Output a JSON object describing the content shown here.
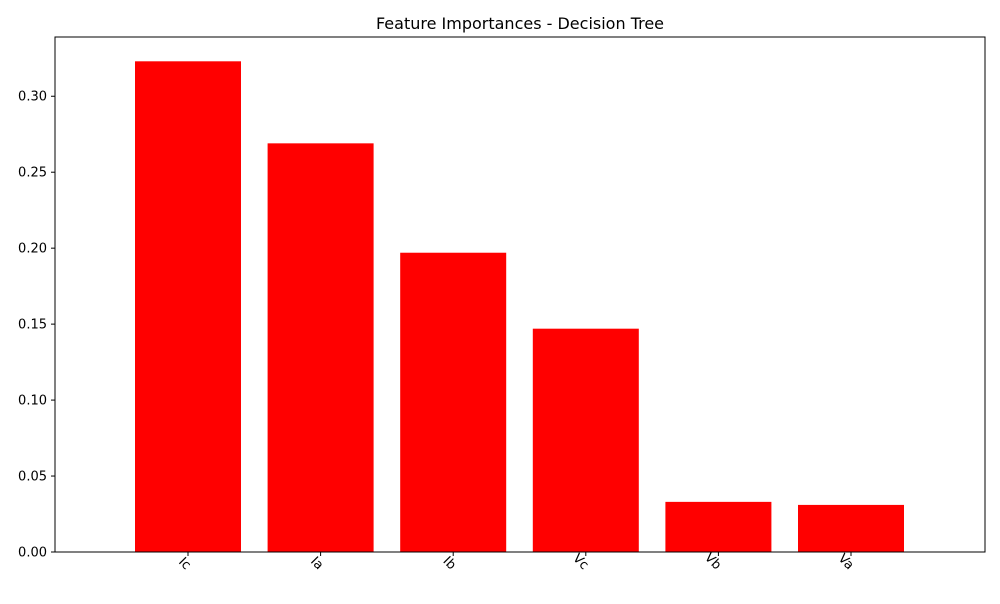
{
  "chart_data": {
    "type": "bar",
    "title": "Feature Importances - Decision Tree",
    "xlabel": "",
    "ylabel": "",
    "categories": [
      "Ic",
      "Ia",
      "Ib",
      "Vc",
      "Vb",
      "Va"
    ],
    "values": [
      0.323,
      0.269,
      0.197,
      0.147,
      0.033,
      0.031
    ],
    "ylim": [
      0,
      0.339
    ],
    "yticks": [
      0.0,
      0.05,
      0.1,
      0.15,
      0.2,
      0.25,
      0.3
    ],
    "ytick_labels": [
      "0.00",
      "0.05",
      "0.10",
      "0.15",
      "0.20",
      "0.25",
      "0.30"
    ],
    "bar_color": "#ff0000",
    "xtick_rotation": "45 degrees",
    "grid": false,
    "legend": "none"
  }
}
